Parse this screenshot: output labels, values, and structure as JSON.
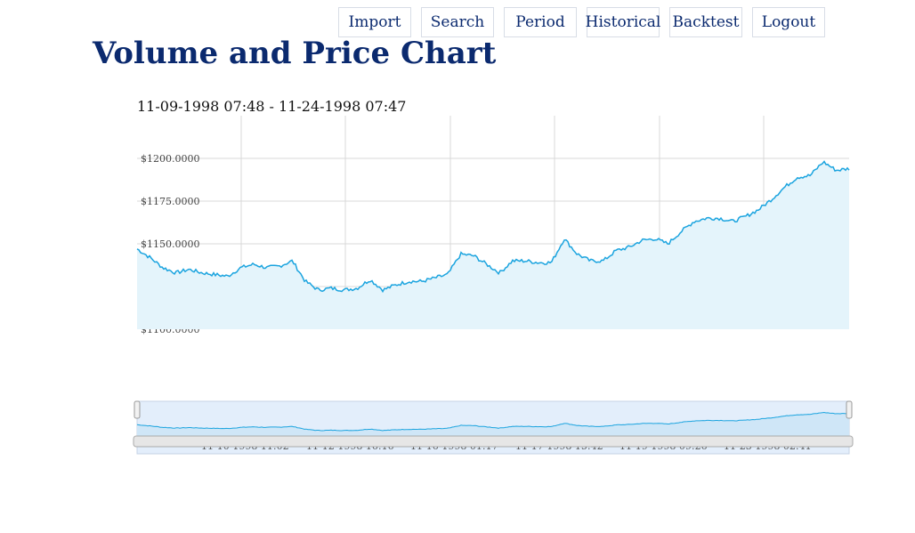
{
  "nav": {
    "import": "Import",
    "search": "Search",
    "period": "Period",
    "historical": "Historical",
    "backtest": "Backtest",
    "logout": "Logout"
  },
  "page": {
    "title": "Volume and Price Chart",
    "range": "11-09-1998 07:48 - 11-24-1998 07:47"
  },
  "colors": {
    "line": "#1ba4df",
    "fill": "#e4f4fb",
    "grid": "#d9d9d9",
    "navigator_bg": "#e3eefb"
  },
  "chart_data": {
    "type": "area",
    "y_ticks": [
      "$1100.0000",
      "$1125.0000",
      "$1150.0000",
      "$1175.0000",
      "$1200.0000"
    ],
    "ylim": [
      1100,
      1225
    ],
    "navigator_labels": [
      "11-10-1998 11:02",
      "11-12-1998 16:16",
      "11-16-1998 01:17",
      "11-17-1998 15:42",
      "11-19-1998 09:26",
      "11-23-1998 02:41"
    ],
    "series": [
      {
        "values": [
          1147,
          1142,
          1136,
          1133,
          1135,
          1133,
          1132,
          1131,
          1136,
          1138,
          1136,
          1137,
          1140,
          1128,
          1123,
          1124,
          1123,
          1124,
          1129,
          1123,
          1126,
          1128,
          1128,
          1130,
          1132,
          1144,
          1143,
          1138,
          1133,
          1140,
          1140,
          1139,
          1139,
          1153,
          1144,
          1140,
          1140,
          1146,
          1148,
          1152,
          1153,
          1150,
          1157,
          1163,
          1165,
          1165,
          1163,
          1166,
          1170,
          1176,
          1183,
          1189,
          1190,
          1198,
          1193,
          1194
        ]
      }
    ]
  }
}
